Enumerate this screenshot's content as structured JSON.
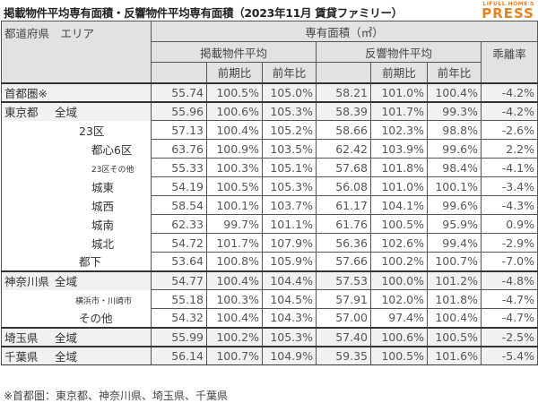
{
  "title": "掲載物件平均専有面積・反響物件平均専有面積（2023年11月 賃貸ファミリー）",
  "logo": {
    "small": "LIFULL HOME'S",
    "big": "PRESS",
    "color": "#e8821e"
  },
  "header": {
    "area": "都道府県　エリア",
    "group": "専有面積（㎡）",
    "listed": "掲載物件平均",
    "response": "反響物件平均",
    "gap": "乖離率",
    "qoq": "前期比",
    "yoy": "前年比"
  },
  "rows": [
    {
      "pref": "首都圏※",
      "area": "",
      "v": [
        "55.74",
        "100.5%",
        "105.0%",
        "58.21",
        "101.0%",
        "100.4%",
        "-4.2%"
      ]
    },
    {
      "pref": "東京都",
      "area": "全域",
      "v": [
        "55.96",
        "100.6%",
        "105.3%",
        "58.39",
        "101.7%",
        "99.3%",
        "-4.2%"
      ]
    },
    {
      "pref": "",
      "area": "23区",
      "v": [
        "57.13",
        "100.4%",
        "105.2%",
        "58.66",
        "102.3%",
        "98.8%",
        "-2.6%"
      ]
    },
    {
      "pref": "",
      "area": "都心6区",
      "v": [
        "63.76",
        "100.9%",
        "103.5%",
        "62.42",
        "103.9%",
        "99.6%",
        "2.2%"
      ]
    },
    {
      "pref": "",
      "area": "23区その他",
      "v": [
        "55.33",
        "100.3%",
        "105.1%",
        "57.68",
        "101.8%",
        "98.4%",
        "-4.1%"
      ]
    },
    {
      "pref": "",
      "area": "城東",
      "v": [
        "54.19",
        "100.5%",
        "105.3%",
        "56.08",
        "101.0%",
        "100.1%",
        "-3.4%"
      ]
    },
    {
      "pref": "",
      "area": "城西",
      "v": [
        "58.54",
        "100.1%",
        "103.7%",
        "61.17",
        "104.1%",
        "99.6%",
        "-4.3%"
      ]
    },
    {
      "pref": "",
      "area": "城南",
      "v": [
        "62.33",
        "99.7%",
        "101.1%",
        "61.76",
        "100.5%",
        "95.9%",
        "0.9%"
      ]
    },
    {
      "pref": "",
      "area": "城北",
      "v": [
        "54.72",
        "101.7%",
        "107.9%",
        "56.36",
        "102.6%",
        "99.4%",
        "-2.9%"
      ]
    },
    {
      "pref": "",
      "area": "都下",
      "v": [
        "53.64",
        "100.8%",
        "105.9%",
        "57.66",
        "100.2%",
        "100.7%",
        "-7.0%"
      ]
    },
    {
      "pref": "神奈川県",
      "area": "全域",
      "v": [
        "54.77",
        "100.4%",
        "104.4%",
        "57.53",
        "100.0%",
        "101.2%",
        "-4.8%"
      ]
    },
    {
      "pref": "",
      "area": "横浜市・川崎市",
      "v": [
        "55.18",
        "100.3%",
        "104.5%",
        "57.91",
        "102.0%",
        "101.8%",
        "-4.7%"
      ]
    },
    {
      "pref": "",
      "area": "その他",
      "v": [
        "54.32",
        "100.4%",
        "104.3%",
        "57.00",
        "97.4%",
        "100.4%",
        "-4.7%"
      ]
    },
    {
      "pref": "埼玉県",
      "area": "全域",
      "v": [
        "55.99",
        "100.2%",
        "105.3%",
        "57.40",
        "100.6%",
        "100.5%",
        "-2.5%"
      ]
    },
    {
      "pref": "千葉県",
      "area": "全域",
      "v": [
        "56.14",
        "100.7%",
        "104.9%",
        "59.35",
        "100.5%",
        "101.6%",
        "-5.4%"
      ]
    }
  ],
  "footnote": "※首都圏：東京都、神奈川県、埼玉県、千葉県"
}
